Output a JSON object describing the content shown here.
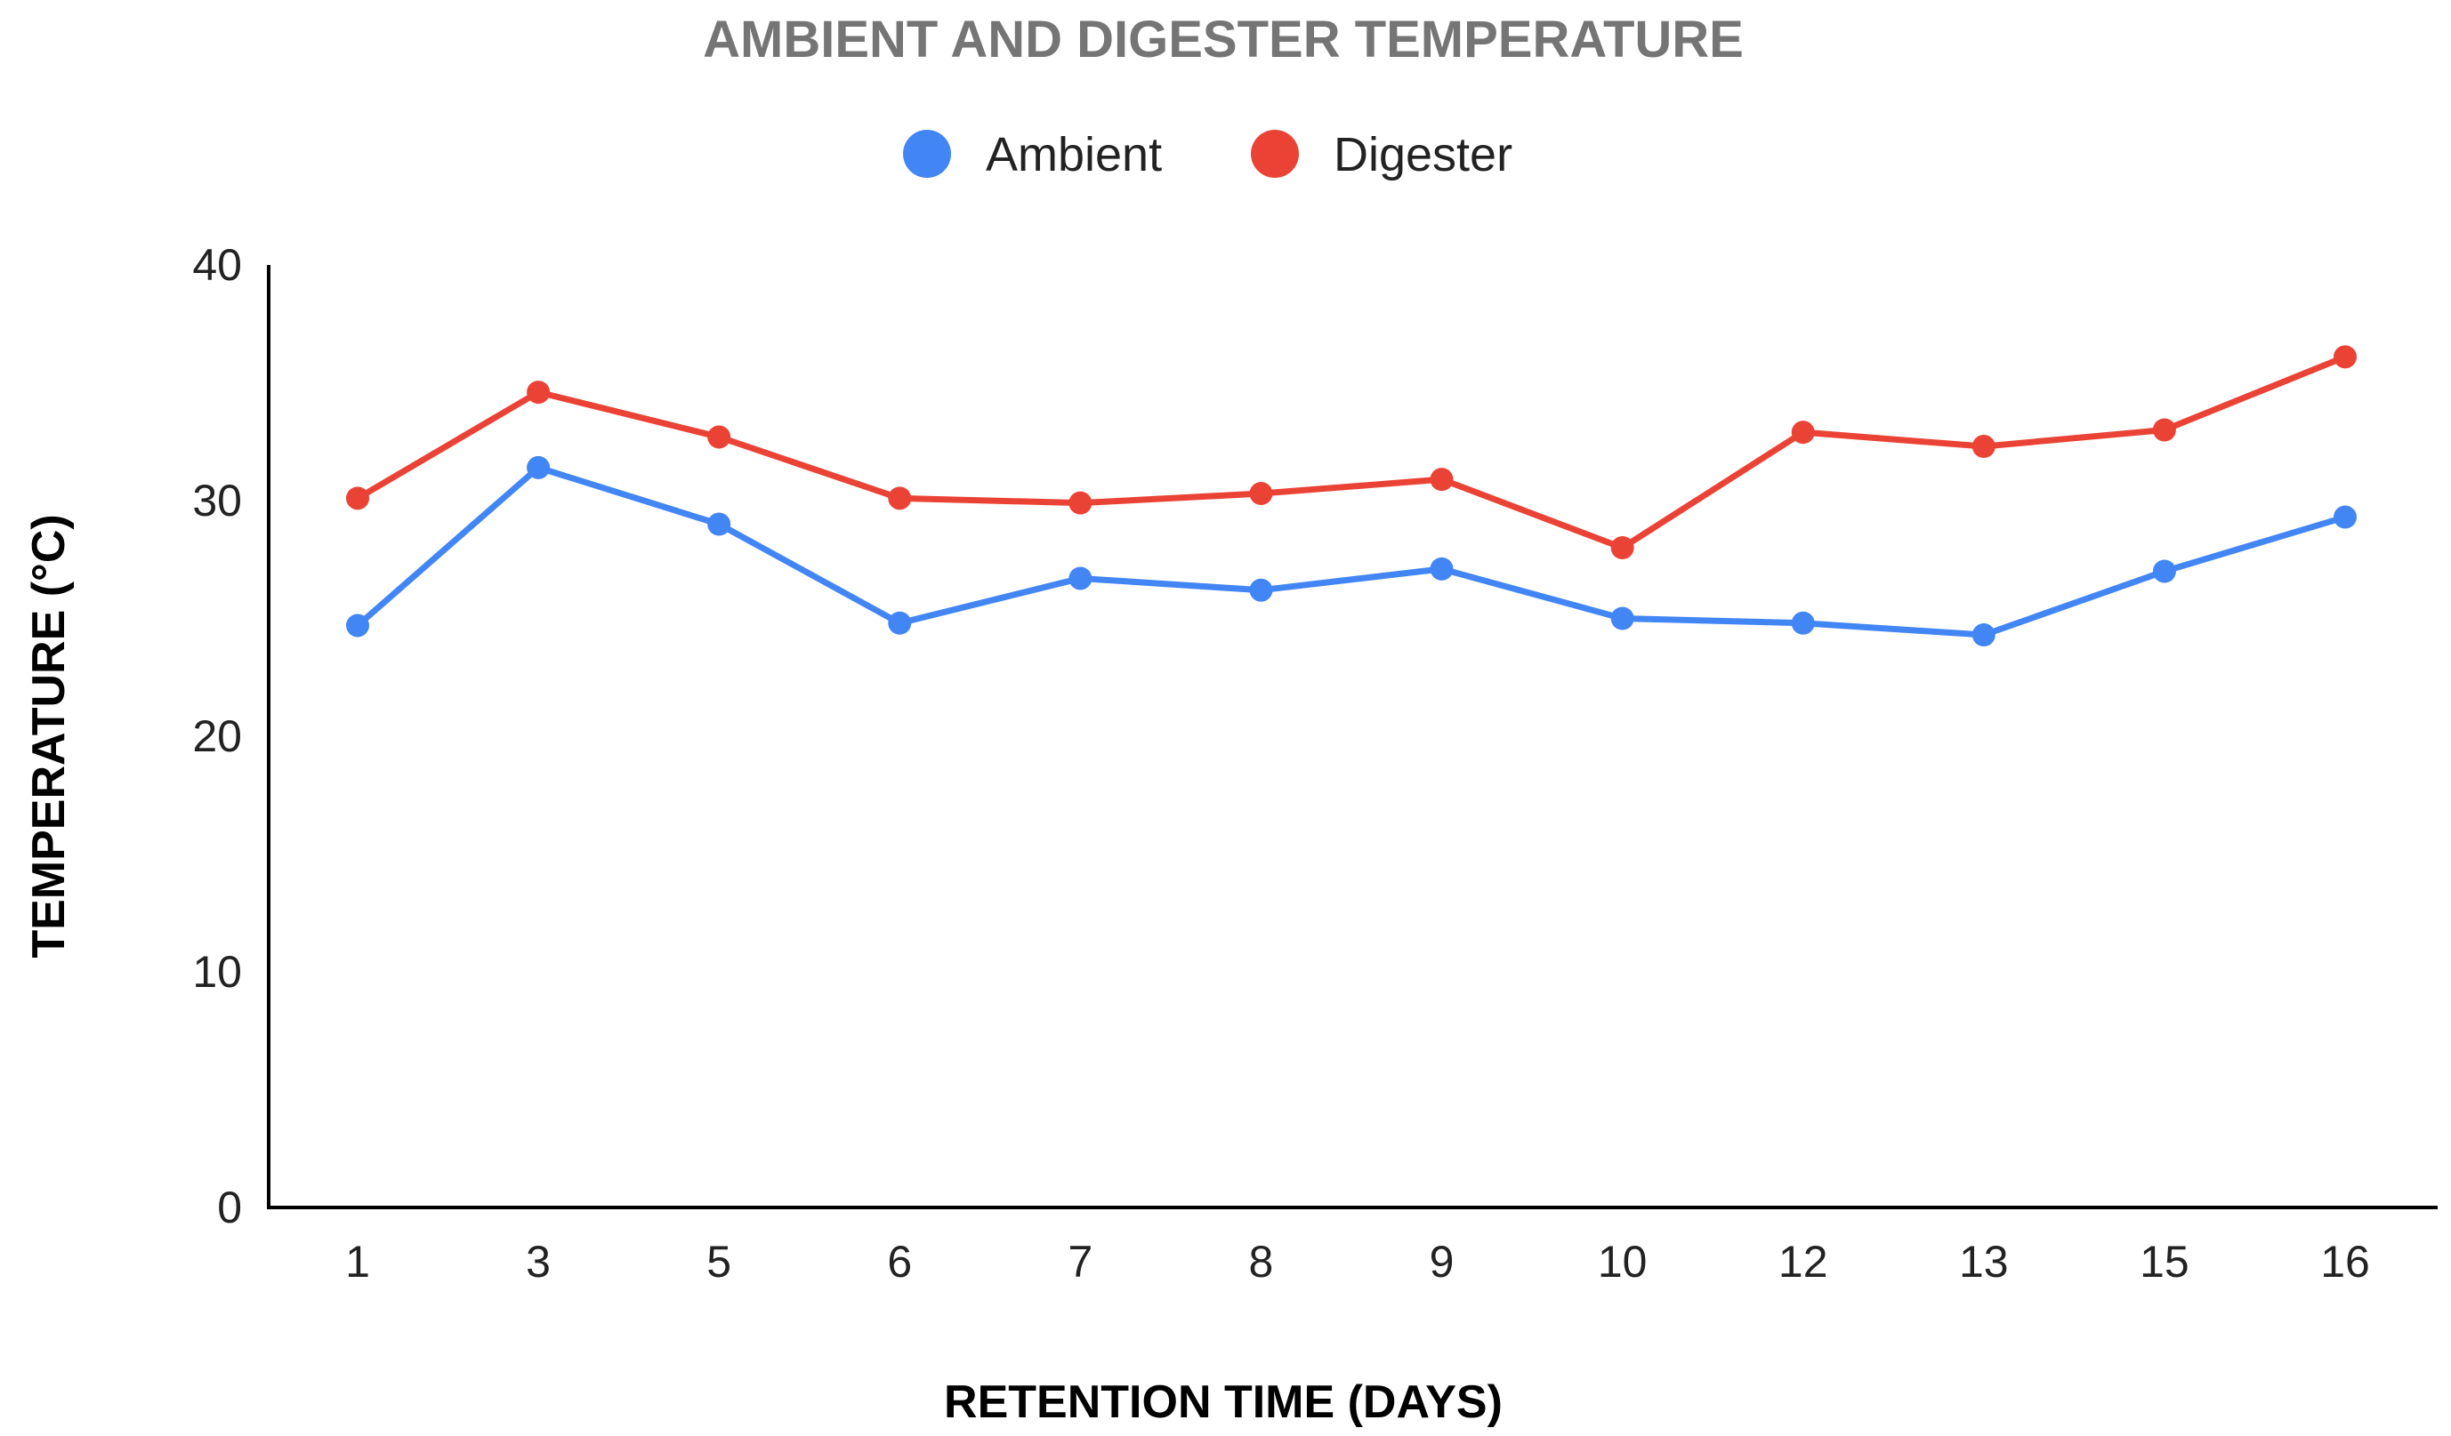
{
  "chart_data": {
    "type": "line",
    "title": "AMBIENT AND DIGESTER TEMPERATURE",
    "xlabel": "RETENTION TIME (DAYS)",
    "ylabel": "TEMPERATURE (°C)",
    "categories": [
      "1",
      "3",
      "5",
      "6",
      "7",
      "8",
      "9",
      "10",
      "12",
      "13",
      "15",
      "16"
    ],
    "ylim": [
      0,
      40
    ],
    "yticks": [
      "0",
      "10",
      "20",
      "30",
      "40"
    ],
    "grid": false,
    "legend_position": "top-center",
    "series": [
      {
        "name": "Ambient",
        "color": "#4285f4",
        "values": [
          24.7,
          31.4,
          29.0,
          24.8,
          26.7,
          26.2,
          27.1,
          25.0,
          24.8,
          24.3,
          27.0,
          29.3
        ]
      },
      {
        "name": "Digester",
        "color": "#ea4335",
        "values": [
          30.1,
          34.6,
          32.7,
          30.1,
          29.9,
          30.3,
          30.9,
          28.0,
          32.9,
          32.3,
          33.0,
          36.1
        ]
      }
    ]
  }
}
